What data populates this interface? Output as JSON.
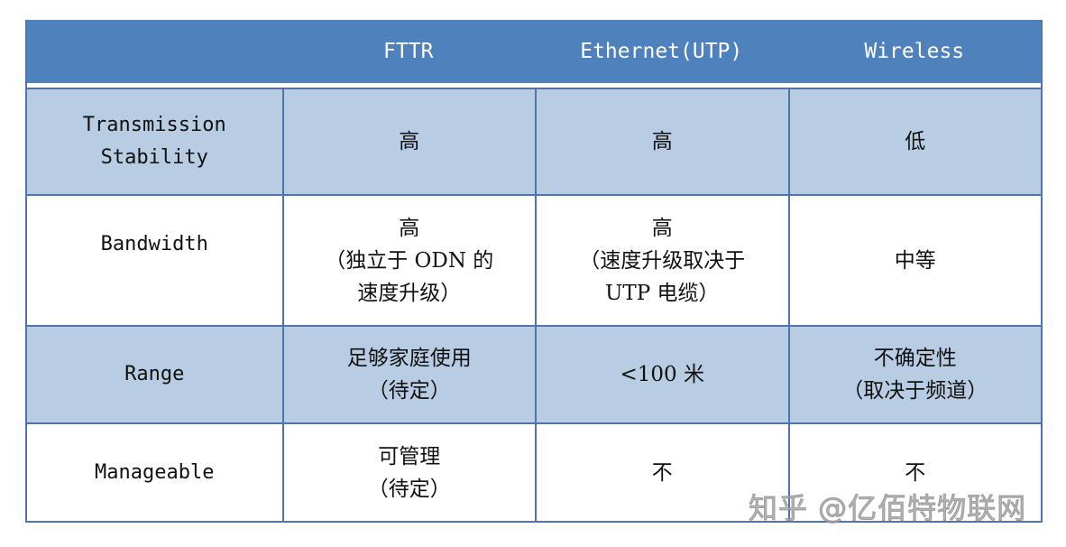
{
  "table": {
    "header": [
      "",
      "FTTR",
      "Ethernet(UTP)",
      "Wireless"
    ],
    "rows": [
      {
        "label": "Transmission\nStability",
        "cells": [
          "高",
          "高",
          "低"
        ]
      },
      {
        "label": "Bandwidth",
        "cells": [
          "高\n（独立于 ODN 的\n速度升级）",
          "高\n（速度升级取决于\nUTP 电缆）",
          "中等"
        ]
      },
      {
        "label": "Range",
        "cells": [
          "足够家庭使用\n（待定）",
          "<100 米",
          "不确定性\n（取决于频道）"
        ]
      },
      {
        "label": "Manageable",
        "cells": [
          "可管理\n（待定）",
          "不",
          "不"
        ]
      }
    ],
    "colors": {
      "header": "#4f81bd",
      "band": "#b8cce4",
      "border": "#4f74ab"
    }
  },
  "watermark": "知乎 @亿佰特物联网"
}
